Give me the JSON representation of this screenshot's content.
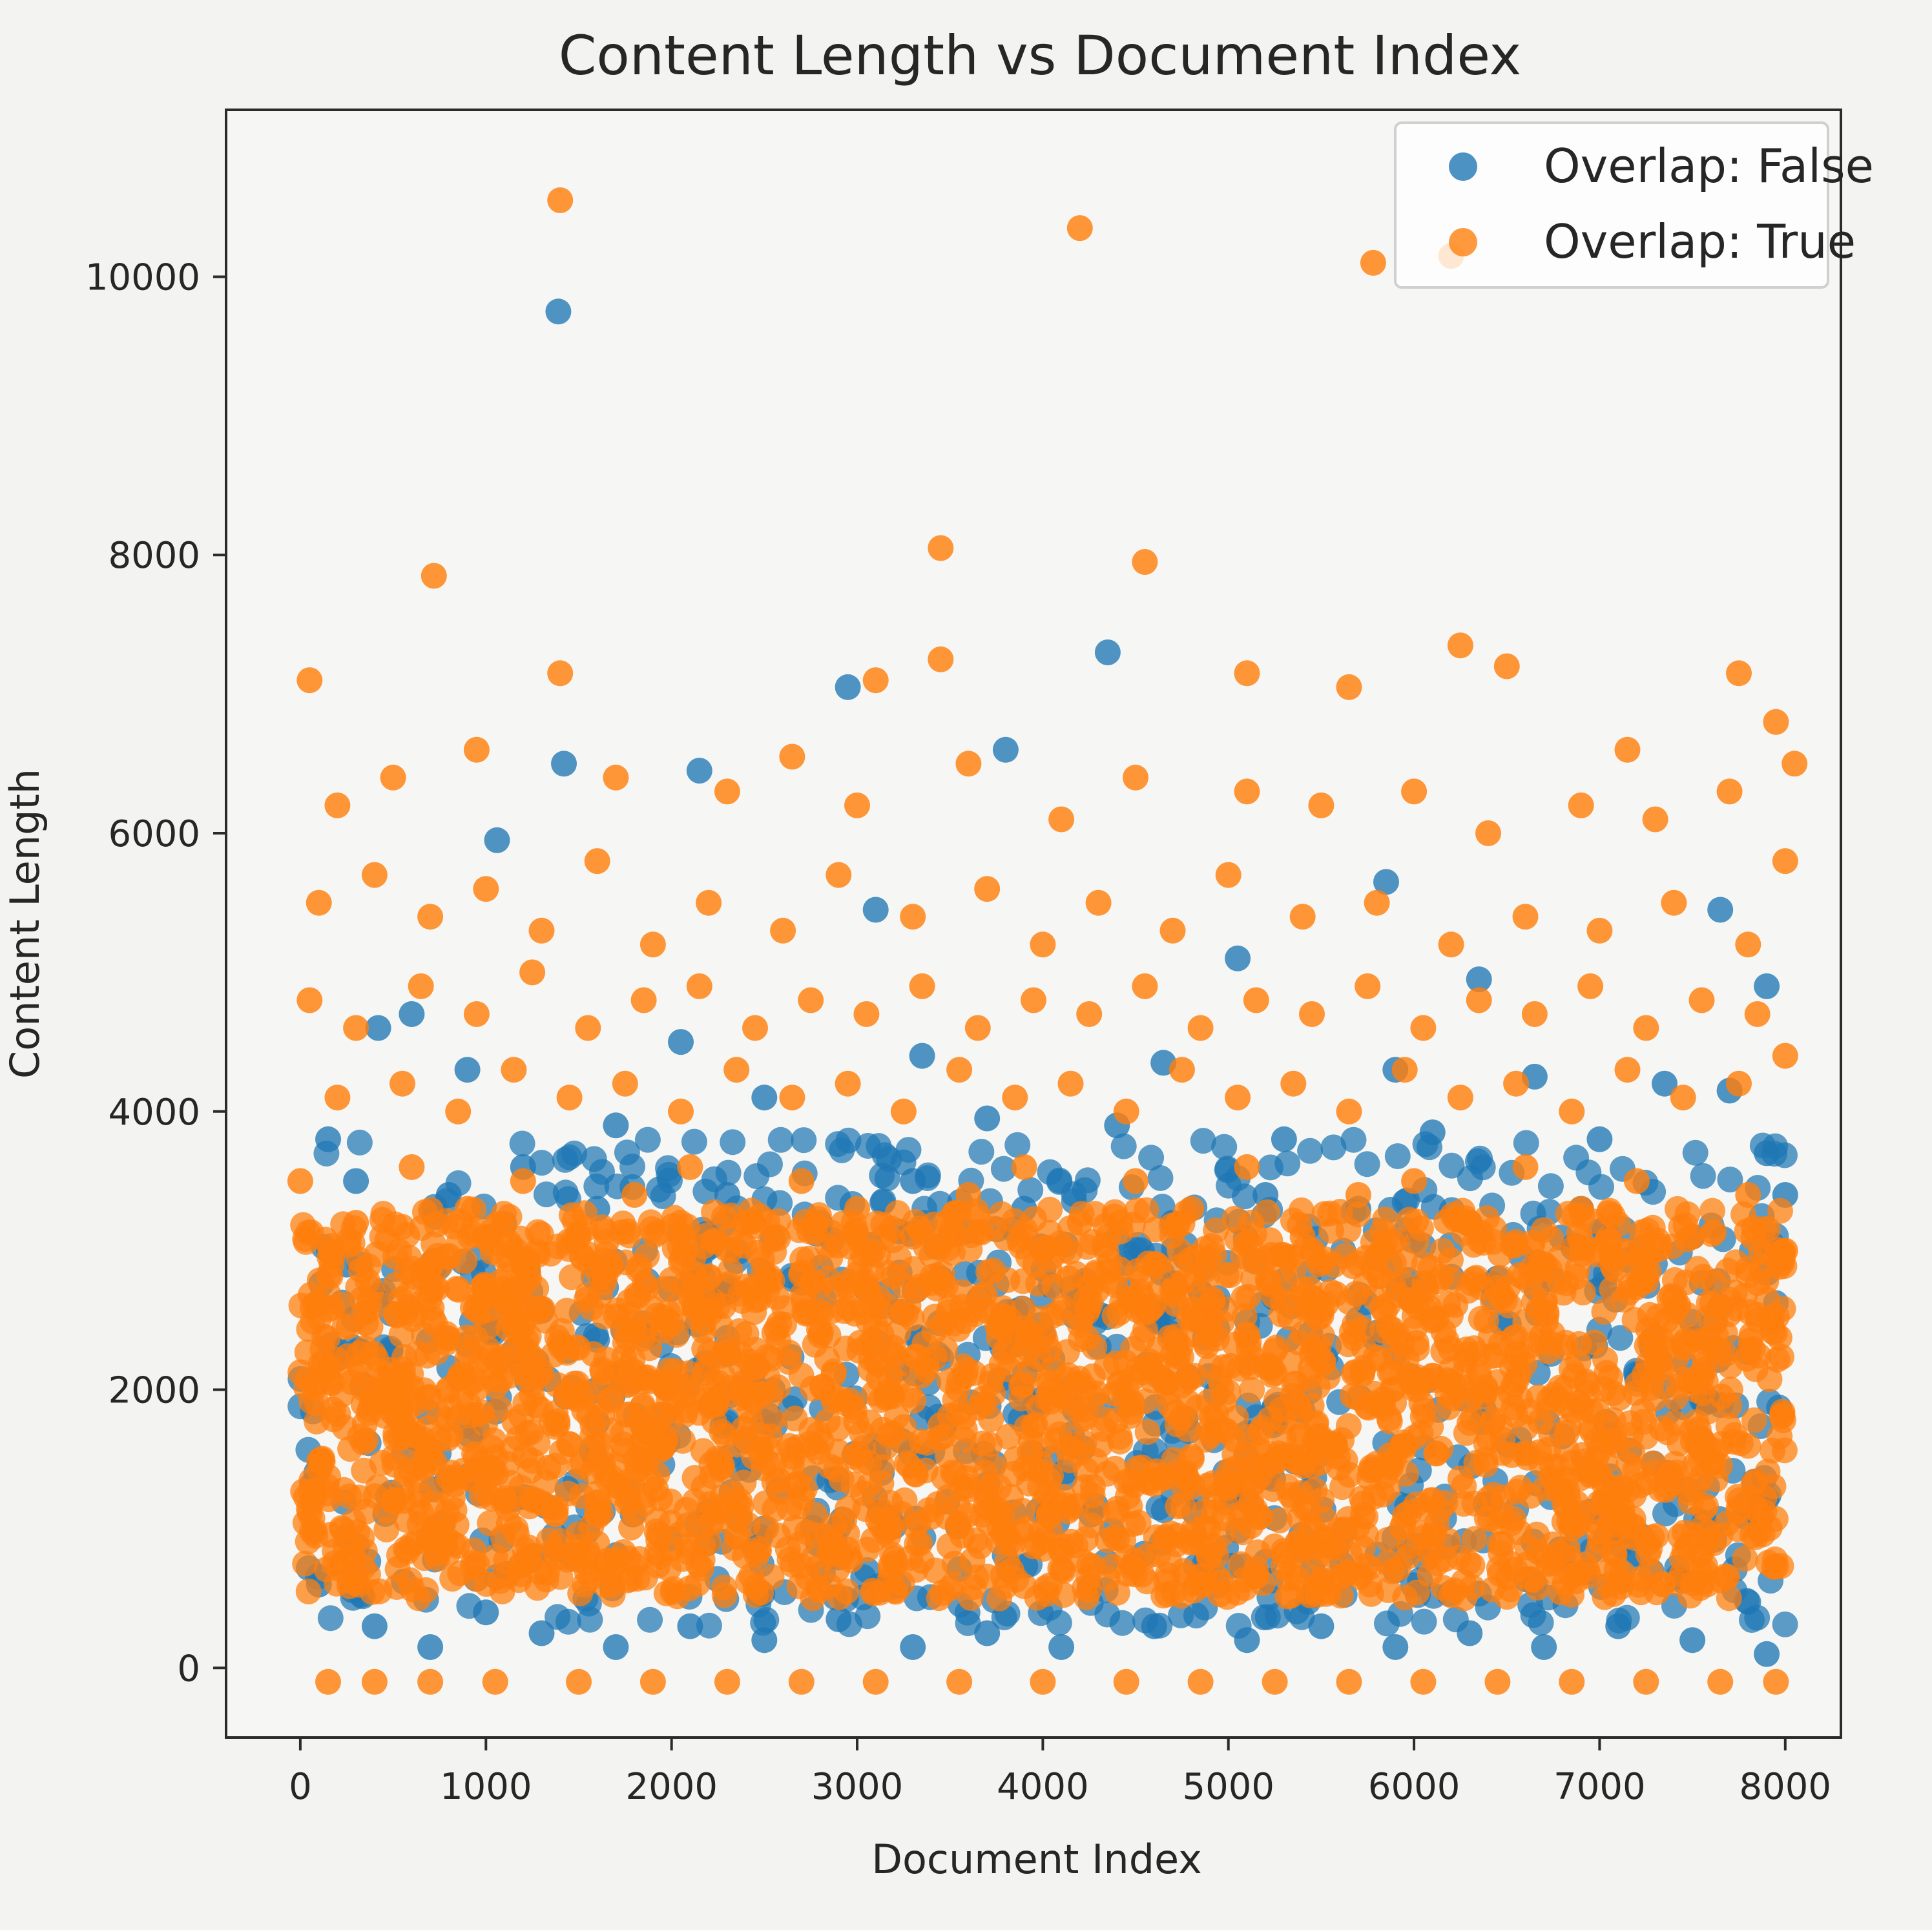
{
  "chart_data": {
    "type": "scatter",
    "title": "Content Length vs Document Index",
    "xlabel": "Document Index",
    "ylabel": "Content Length",
    "xlim": [
      -400,
      8300
    ],
    "ylim": [
      -500,
      11200
    ],
    "xticks": [
      0,
      1000,
      2000,
      3000,
      4000,
      5000,
      6000,
      7000,
      8000
    ],
    "yticks": [
      0,
      2000,
      4000,
      6000,
      8000,
      10000
    ],
    "grid": false,
    "legend_placement": "top-right",
    "series": [
      {
        "name": "Overlap: False",
        "color": "#1f77b4",
        "points": [
          [
            1390,
            9750
          ],
          [
            1060,
            5950
          ],
          [
            2150,
            6450
          ],
          [
            2950,
            7050
          ],
          [
            3800,
            6600
          ],
          [
            4350,
            7300
          ],
          [
            5850,
            5650
          ],
          [
            3100,
            5450
          ],
          [
            7650,
            5450
          ],
          [
            5050,
            5100
          ],
          [
            6350,
            4950
          ],
          [
            7900,
            4900
          ],
          [
            1420,
            6500
          ],
          [
            420,
            4600
          ],
          [
            600,
            4700
          ],
          [
            2050,
            4500
          ],
          [
            3350,
            4400
          ],
          [
            4650,
            4350
          ],
          [
            5900,
            4300
          ],
          [
            6650,
            4250
          ],
          [
            7350,
            4200
          ],
          [
            7700,
            4150
          ],
          [
            900,
            4300
          ],
          [
            1700,
            3900
          ],
          [
            2500,
            4100
          ],
          [
            3700,
            3950
          ],
          [
            4400,
            3900
          ],
          [
            5300,
            3800
          ],
          [
            6100,
            3850
          ],
          [
            7000,
            3800
          ],
          [
            7900,
            3700
          ],
          [
            150,
            3800
          ],
          [
            300,
            3500
          ],
          [
            800,
            3400
          ],
          [
            1200,
            3600
          ],
          [
            1600,
            3300
          ],
          [
            2300,
            3400
          ],
          [
            2800,
            3200
          ],
          [
            3300,
            3500
          ],
          [
            3900,
            3300
          ],
          [
            4700,
            3200
          ],
          [
            5200,
            3400
          ],
          [
            5700,
            3300
          ],
          [
            6300,
            3200
          ],
          [
            6900,
            3300
          ],
          [
            7500,
            3100
          ],
          [
            8000,
            3400
          ],
          [
            100,
            600
          ],
          [
            400,
            300
          ],
          [
            700,
            150
          ],
          [
            1000,
            400
          ],
          [
            1300,
            250
          ],
          [
            1700,
            150
          ],
          [
            2100,
            300
          ],
          [
            2500,
            200
          ],
          [
            2900,
            350
          ],
          [
            3300,
            150
          ],
          [
            3700,
            250
          ],
          [
            4100,
            150
          ],
          [
            4600,
            300
          ],
          [
            5100,
            200
          ],
          [
            5500,
            300
          ],
          [
            5900,
            150
          ],
          [
            6300,
            250
          ],
          [
            6700,
            150
          ],
          [
            7100,
            300
          ],
          [
            7500,
            200
          ],
          [
            7900,
            100
          ],
          [
            250,
            2900
          ],
          [
            1150,
            2700
          ],
          [
            2200,
            2600
          ],
          [
            3450,
            2800
          ],
          [
            4850,
            2700
          ],
          [
            6450,
            2800
          ],
          [
            7650,
            2600
          ]
        ]
      },
      {
        "name": "Overlap: True",
        "color": "#ff7f0e",
        "points": [
          [
            1400,
            10550
          ],
          [
            4200,
            10350
          ],
          [
            5780,
            10100
          ],
          [
            6200,
            10150
          ],
          [
            720,
            7850
          ],
          [
            3450,
            8050
          ],
          [
            4550,
            7950
          ],
          [
            50,
            7100
          ],
          [
            1400,
            7150
          ],
          [
            3100,
            7100
          ],
          [
            3450,
            7250
          ],
          [
            5100,
            7150
          ],
          [
            5650,
            7050
          ],
          [
            6250,
            7350
          ],
          [
            6500,
            7200
          ],
          [
            7750,
            7150
          ],
          [
            7150,
            6600
          ],
          [
            7950,
            6800
          ],
          [
            8050,
            6500
          ],
          [
            200,
            6200
          ],
          [
            500,
            6400
          ],
          [
            950,
            6600
          ],
          [
            1700,
            6400
          ],
          [
            2300,
            6300
          ],
          [
            2650,
            6550
          ],
          [
            3000,
            6200
          ],
          [
            3600,
            6500
          ],
          [
            4100,
            6100
          ],
          [
            4500,
            6400
          ],
          [
            5100,
            6300
          ],
          [
            5500,
            6200
          ],
          [
            6000,
            6300
          ],
          [
            6400,
            6000
          ],
          [
            6900,
            6200
          ],
          [
            7300,
            6100
          ],
          [
            7700,
            6300
          ],
          [
            8000,
            5800
          ],
          [
            100,
            5500
          ],
          [
            400,
            5700
          ],
          [
            700,
            5400
          ],
          [
            1000,
            5600
          ],
          [
            1300,
            5300
          ],
          [
            1600,
            5800
          ],
          [
            1900,
            5200
          ],
          [
            2200,
            5500
          ],
          [
            2600,
            5300
          ],
          [
            2900,
            5700
          ],
          [
            3300,
            5400
          ],
          [
            3700,
            5600
          ],
          [
            4000,
            5200
          ],
          [
            4300,
            5500
          ],
          [
            4700,
            5300
          ],
          [
            5000,
            5700
          ],
          [
            5400,
            5400
          ],
          [
            5800,
            5500
          ],
          [
            6200,
            5200
          ],
          [
            6600,
            5400
          ],
          [
            7000,
            5300
          ],
          [
            7400,
            5500
          ],
          [
            7800,
            5200
          ],
          [
            50,
            4800
          ],
          [
            300,
            4600
          ],
          [
            650,
            4900
          ],
          [
            950,
            4700
          ],
          [
            1250,
            5000
          ],
          [
            1550,
            4600
          ],
          [
            1850,
            4800
          ],
          [
            2150,
            4900
          ],
          [
            2450,
            4600
          ],
          [
            2750,
            4800
          ],
          [
            3050,
            4700
          ],
          [
            3350,
            4900
          ],
          [
            3650,
            4600
          ],
          [
            3950,
            4800
          ],
          [
            4250,
            4700
          ],
          [
            4550,
            4900
          ],
          [
            4850,
            4600
          ],
          [
            5150,
            4800
          ],
          [
            5450,
            4700
          ],
          [
            5750,
            4900
          ],
          [
            6050,
            4600
          ],
          [
            6350,
            4800
          ],
          [
            6650,
            4700
          ],
          [
            6950,
            4900
          ],
          [
            7250,
            4600
          ],
          [
            7550,
            4800
          ],
          [
            7850,
            4700
          ],
          [
            8000,
            4400
          ],
          [
            200,
            4100
          ],
          [
            550,
            4200
          ],
          [
            850,
            4000
          ],
          [
            1150,
            4300
          ],
          [
            1450,
            4100
          ],
          [
            1750,
            4200
          ],
          [
            2050,
            4000
          ],
          [
            2350,
            4300
          ],
          [
            2650,
            4100
          ],
          [
            2950,
            4200
          ],
          [
            3250,
            4000
          ],
          [
            3550,
            4300
          ],
          [
            3850,
            4100
          ],
          [
            4150,
            4200
          ],
          [
            4450,
            4000
          ],
          [
            4750,
            4300
          ],
          [
            5050,
            4100
          ],
          [
            5350,
            4200
          ],
          [
            5650,
            4000
          ],
          [
            5950,
            4300
          ],
          [
            6250,
            4100
          ],
          [
            6550,
            4200
          ],
          [
            6850,
            4000
          ],
          [
            7150,
            4300
          ],
          [
            7450,
            4100
          ],
          [
            7750,
            4200
          ],
          [
            0,
            3500
          ],
          [
            300,
            3200
          ],
          [
            600,
            3600
          ],
          [
            900,
            3300
          ],
          [
            1200,
            3500
          ],
          [
            1500,
            3100
          ],
          [
            1800,
            3400
          ],
          [
            2100,
            3600
          ],
          [
            2400,
            3200
          ],
          [
            2700,
            3500
          ],
          [
            3000,
            3300
          ],
          [
            3300,
            3100
          ],
          [
            3600,
            3400
          ],
          [
            3900,
            3600
          ],
          [
            4200,
            3200
          ],
          [
            4500,
            3500
          ],
          [
            4800,
            3300
          ],
          [
            5100,
            3600
          ],
          [
            5400,
            3100
          ],
          [
            5700,
            3400
          ],
          [
            6000,
            3500
          ],
          [
            6300,
            3200
          ],
          [
            6600,
            3600
          ],
          [
            6900,
            3300
          ],
          [
            7200,
            3500
          ],
          [
            7500,
            3100
          ],
          [
            7800,
            3400
          ],
          [
            8000,
            3000
          ],
          [
            150,
            -100
          ],
          [
            400,
            -100
          ],
          [
            700,
            -100
          ],
          [
            1050,
            -100
          ],
          [
            1500,
            -100
          ],
          [
            1900,
            -100
          ],
          [
            2300,
            -100
          ],
          [
            2700,
            -100
          ],
          [
            3100,
            -100
          ],
          [
            3550,
            -100
          ],
          [
            4000,
            -100
          ],
          [
            4450,
            -100
          ],
          [
            4850,
            -100
          ],
          [
            5250,
            -100
          ],
          [
            5650,
            -100
          ],
          [
            6050,
            -100
          ],
          [
            6450,
            -100
          ],
          [
            6850,
            -100
          ],
          [
            7250,
            -100
          ],
          [
            7650,
            -100
          ],
          [
            7950,
            -100
          ]
        ],
        "dense_band": [
          0,
          3000
        ]
      }
    ]
  }
}
